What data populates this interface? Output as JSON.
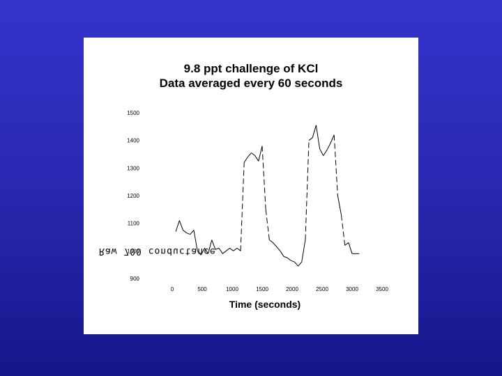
{
  "slide": {
    "background_top": "#3434cc",
    "background_bottom": "#16168a"
  },
  "chart_data": {
    "type": "line",
    "title": [
      "9.8 ppt challenge of KCl",
      "Data averaged every 60 seconds"
    ],
    "xlabel": "Time (seconds)",
    "ylabel": "Raw 700 conductance",
    "xlim": [
      0,
      3500
    ],
    "ylim": [
      900,
      1500
    ],
    "x_ticks": [
      "0",
      "500",
      "1000",
      "1500",
      "2000",
      "2500",
      "3000",
      "3500"
    ],
    "y_ticks": [
      "900",
      "1000",
      "1100",
      "1200",
      "1300",
      "1400",
      "1500"
    ],
    "grid": false,
    "line_color": "#000000",
    "series": [
      {
        "x": [
          60,
          120,
          180,
          240,
          300,
          360,
          420,
          480,
          540,
          600,
          660,
          720,
          780,
          840,
          900,
          960,
          1020,
          1080,
          1140,
          1200,
          1260,
          1320,
          1380,
          1440,
          1500,
          1560,
          1620,
          1680,
          1740,
          1800,
          1860,
          1920,
          1980,
          2040,
          2100,
          2160,
          2220,
          2280,
          2340,
          2400,
          2460,
          2520,
          2580,
          2640,
          2700,
          2760,
          2820,
          2880,
          2940,
          3000,
          3060,
          3120
        ],
        "y": [
          1070,
          1110,
          1075,
          1065,
          1060,
          1075,
          1000,
          985,
          1010,
          990,
          1040,
          1005,
          1010,
          990,
          1000,
          1010,
          1000,
          1010,
          1000,
          1320,
          1340,
          1355,
          1345,
          1325,
          1380,
          1150,
          1040,
          1030,
          1015,
          1000,
          980,
          975,
          965,
          960,
          945,
          960,
          1040,
          1400,
          1410,
          1455,
          1370,
          1345,
          1365,
          1390,
          1420,
          1200,
          1130,
          1020,
          1030,
          990,
          990,
          990
        ]
      }
    ]
  }
}
